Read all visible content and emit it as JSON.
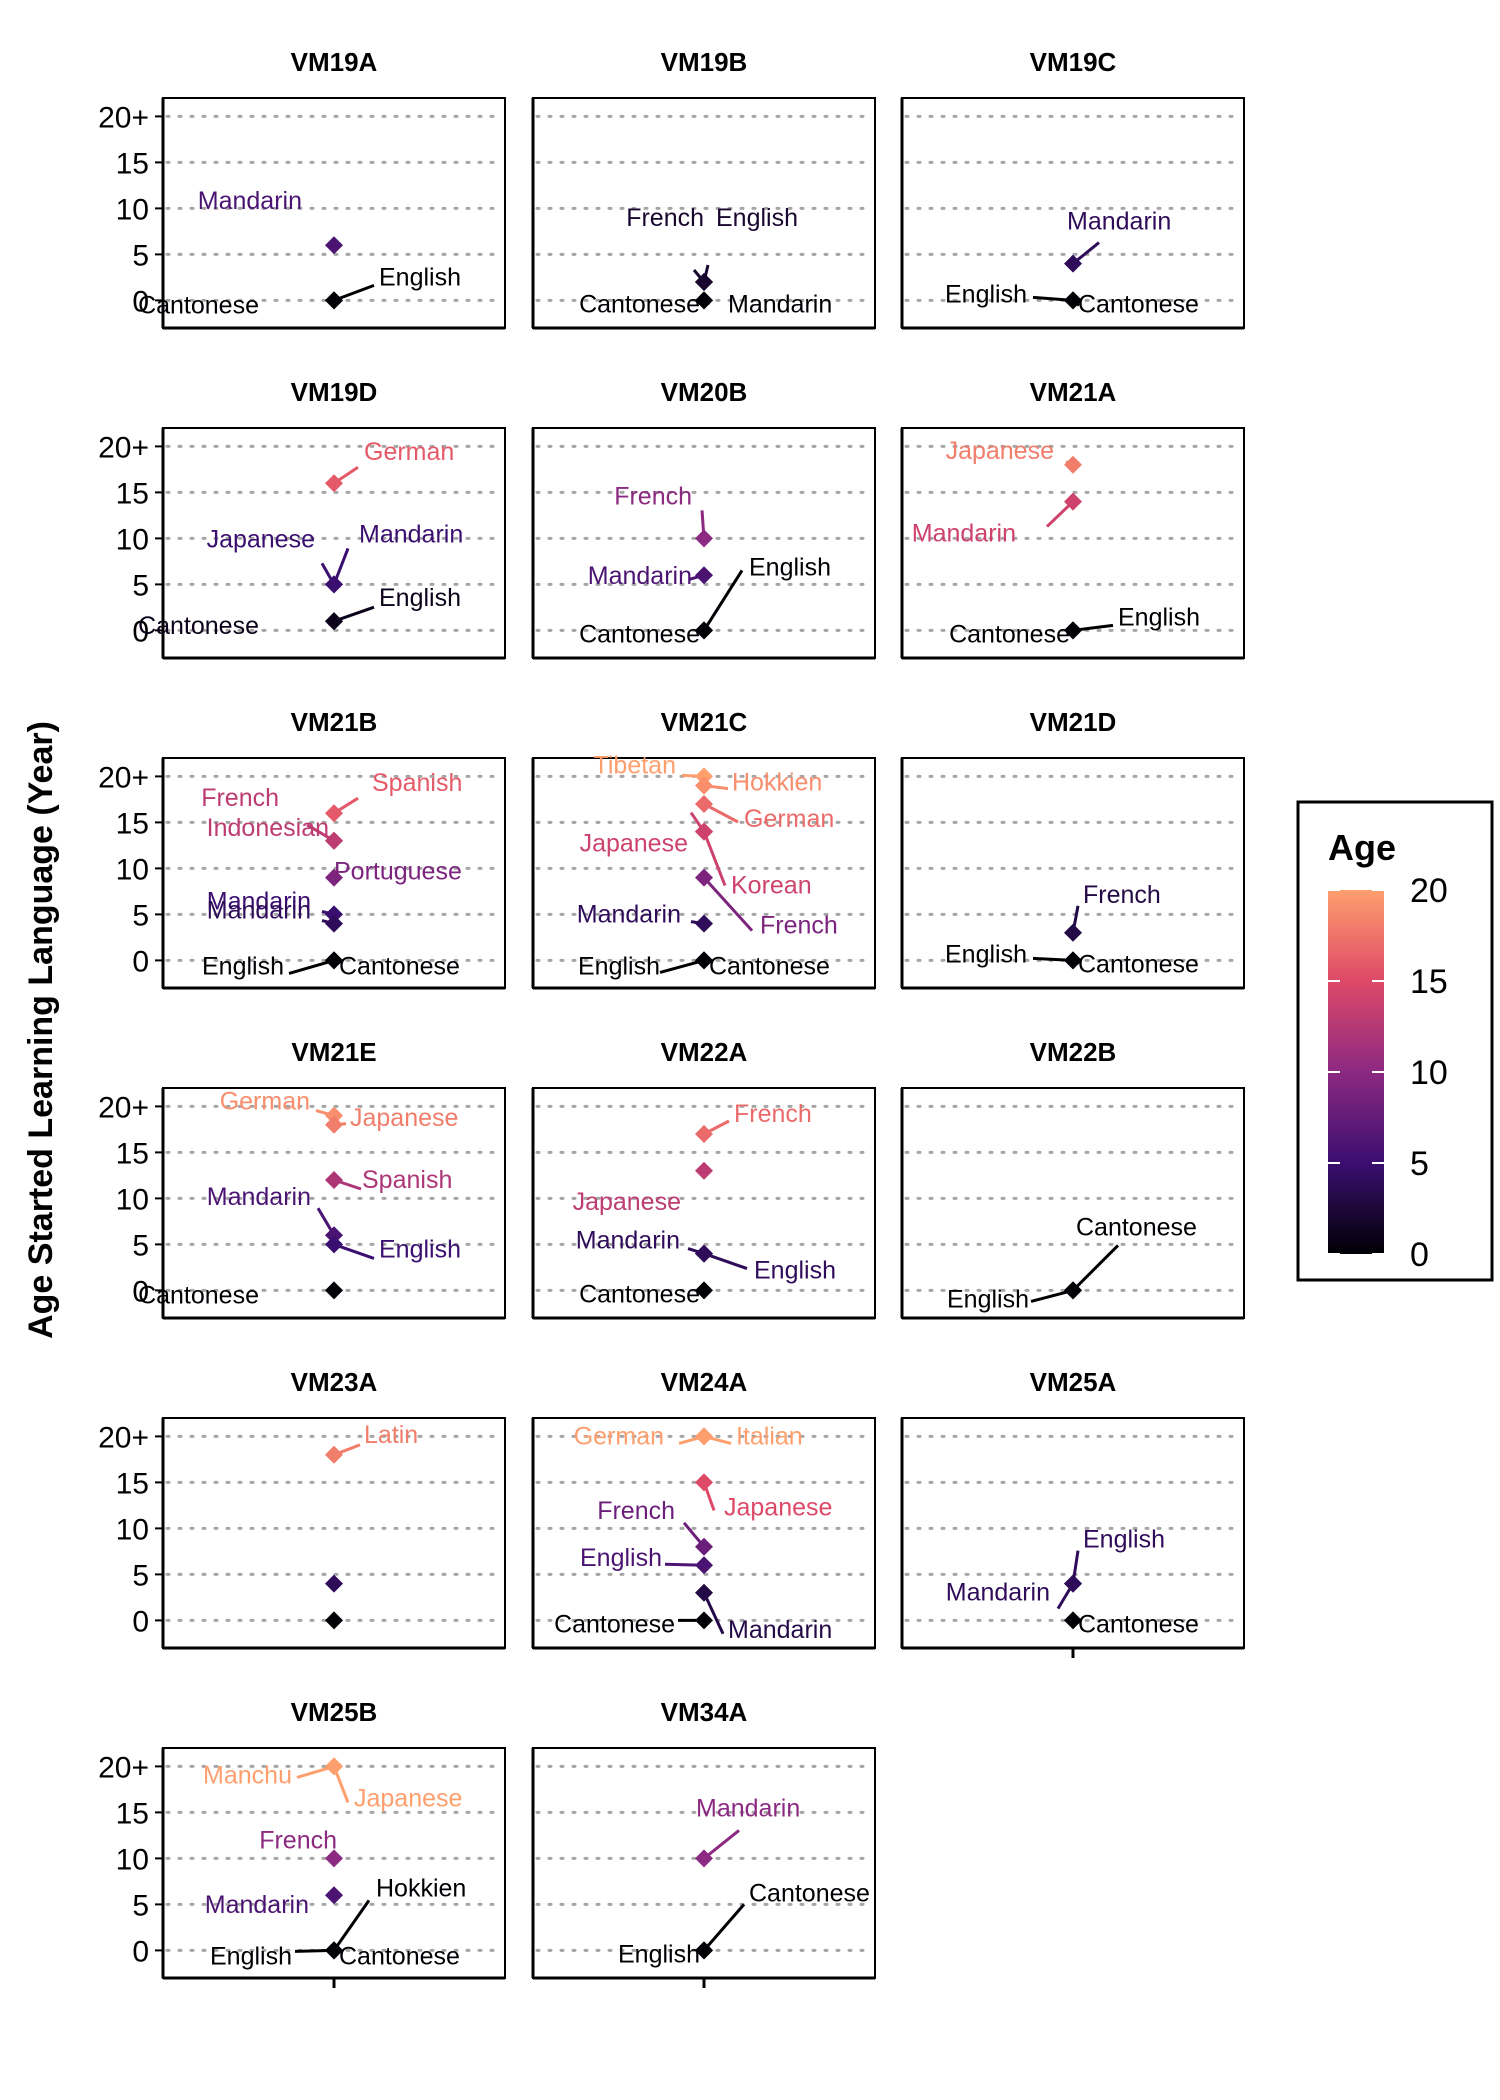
{
  "chart_data": {
    "type": "scatter",
    "ylabel": "Age Started Learning Language (Year)",
    "y_ticks": [
      "0",
      "5",
      "10",
      "15",
      "20+"
    ],
    "ylim": [
      -3,
      22
    ],
    "grid": "horizontal dotted",
    "color_scale": {
      "title": "Age",
      "range": [
        0,
        20
      ],
      "ticks": [
        "0",
        "5",
        "10",
        "15",
        "20"
      ],
      "stops": [
        "#000004",
        "#3b0f70",
        "#8c2981",
        "#de4968",
        "#fe9f6d"
      ]
    },
    "panels": [
      {
        "title": "VM19A",
        "points": [
          {
            "language": "Mandarin",
            "age": 6
          },
          {
            "language": "Cantonese",
            "age": 0
          },
          {
            "language": "English",
            "age": 0
          }
        ]
      },
      {
        "title": "VM19B",
        "points": [
          {
            "language": "French",
            "age": 2
          },
          {
            "language": "English",
            "age": 2
          },
          {
            "language": "Cantonese",
            "age": 0
          },
          {
            "language": "Mandarin",
            "age": 0
          }
        ]
      },
      {
        "title": "VM19C",
        "points": [
          {
            "language": "Mandarin",
            "age": 4
          },
          {
            "language": "English",
            "age": 0
          },
          {
            "language": "Cantonese",
            "age": 0
          }
        ]
      },
      {
        "title": "VM19D",
        "points": [
          {
            "language": "German",
            "age": 16
          },
          {
            "language": "Japanese",
            "age": 5
          },
          {
            "language": "Mandarin",
            "age": 5
          },
          {
            "language": "Cantonese",
            "age": 1
          },
          {
            "language": "English",
            "age": 1
          }
        ]
      },
      {
        "title": "VM20B",
        "points": [
          {
            "language": "French",
            "age": 10
          },
          {
            "language": "Mandarin",
            "age": 6
          },
          {
            "language": "English",
            "age": 0
          },
          {
            "language": "Cantonese",
            "age": 0
          }
        ]
      },
      {
        "title": "VM21A",
        "points": [
          {
            "language": "Japanese",
            "age": 18
          },
          {
            "language": "Mandarin",
            "age": 14
          },
          {
            "language": "Cantonese",
            "age": 0
          },
          {
            "language": "English",
            "age": 0
          }
        ]
      },
      {
        "title": "VM21B",
        "points": [
          {
            "language": "Spanish",
            "age": 16
          },
          {
            "language": "French",
            "age": 13
          },
          {
            "language": "Indonesian",
            "age": 13
          },
          {
            "language": "Portuguese",
            "age": 9
          },
          {
            "language": "Mandarin",
            "age": 5
          },
          {
            "language": "Mandarin",
            "age": 4
          },
          {
            "language": "English",
            "age": 0
          },
          {
            "language": "Cantonese",
            "age": 0
          }
        ]
      },
      {
        "title": "VM21C",
        "points": [
          {
            "language": "Tibetan",
            "age": 20
          },
          {
            "language": "Hokkien",
            "age": 19
          },
          {
            "language": "German",
            "age": 17
          },
          {
            "language": "Korean",
            "age": 14
          },
          {
            "language": "Japanese",
            "age": 14
          },
          {
            "language": "French",
            "age": 9
          },
          {
            "language": "Mandarin",
            "age": 4
          },
          {
            "language": "English",
            "age": 0
          },
          {
            "language": "Cantonese",
            "age": 0
          }
        ]
      },
      {
        "title": "VM21D",
        "points": [
          {
            "language": "French",
            "age": 3
          },
          {
            "language": "English",
            "age": 0
          },
          {
            "language": "Cantonese",
            "age": 0
          }
        ]
      },
      {
        "title": "VM21E",
        "points": [
          {
            "language": "German",
            "age": 19
          },
          {
            "language": "Japanese",
            "age": 18
          },
          {
            "language": "Spanish",
            "age": 12
          },
          {
            "language": "Mandarin",
            "age": 6
          },
          {
            "language": "English",
            "age": 5
          },
          {
            "language": "Cantonese",
            "age": 0
          }
        ]
      },
      {
        "title": "VM22A",
        "points": [
          {
            "language": "French",
            "age": 17
          },
          {
            "language": "Japanese",
            "age": 13
          },
          {
            "language": "Mandarin",
            "age": 4
          },
          {
            "language": "English",
            "age": 4
          },
          {
            "language": "Cantonese",
            "age": 0
          }
        ]
      },
      {
        "title": "VM22B",
        "points": [
          {
            "language": "Cantonese",
            "age": 0
          },
          {
            "language": "English",
            "age": 0
          }
        ]
      },
      {
        "title": "VM23A",
        "points": [
          {
            "language": "Latin",
            "age": 18
          },
          {
            "language": "",
            "age": 4
          },
          {
            "language": "",
            "age": 0
          }
        ]
      },
      {
        "title": "VM24A",
        "points": [
          {
            "language": "German",
            "age": 20
          },
          {
            "language": "Italian",
            "age": 20
          },
          {
            "language": "Japanese",
            "age": 15
          },
          {
            "language": "French",
            "age": 8
          },
          {
            "language": "English",
            "age": 6
          },
          {
            "language": "Mandarin",
            "age": 3
          },
          {
            "language": "Cantonese",
            "age": 0
          }
        ]
      },
      {
        "title": "VM25A",
        "points": [
          {
            "language": "English",
            "age": 4
          },
          {
            "language": "Mandarin",
            "age": 4
          },
          {
            "language": "Cantonese",
            "age": 0
          }
        ]
      },
      {
        "title": "VM25B",
        "points": [
          {
            "language": "Manchu",
            "age": 20
          },
          {
            "language": "Japanese",
            "age": 20
          },
          {
            "language": "French",
            "age": 10
          },
          {
            "language": "Mandarin",
            "age": 6
          },
          {
            "language": "Hokkien",
            "age": 0
          },
          {
            "language": "English",
            "age": 0
          },
          {
            "language": "Cantonese",
            "age": 0
          }
        ]
      },
      {
        "title": "VM34A",
        "points": [
          {
            "language": "Mandarin",
            "age": 10
          },
          {
            "language": "English",
            "age": 0
          },
          {
            "language": "Cantonese",
            "age": 0
          }
        ]
      }
    ]
  }
}
